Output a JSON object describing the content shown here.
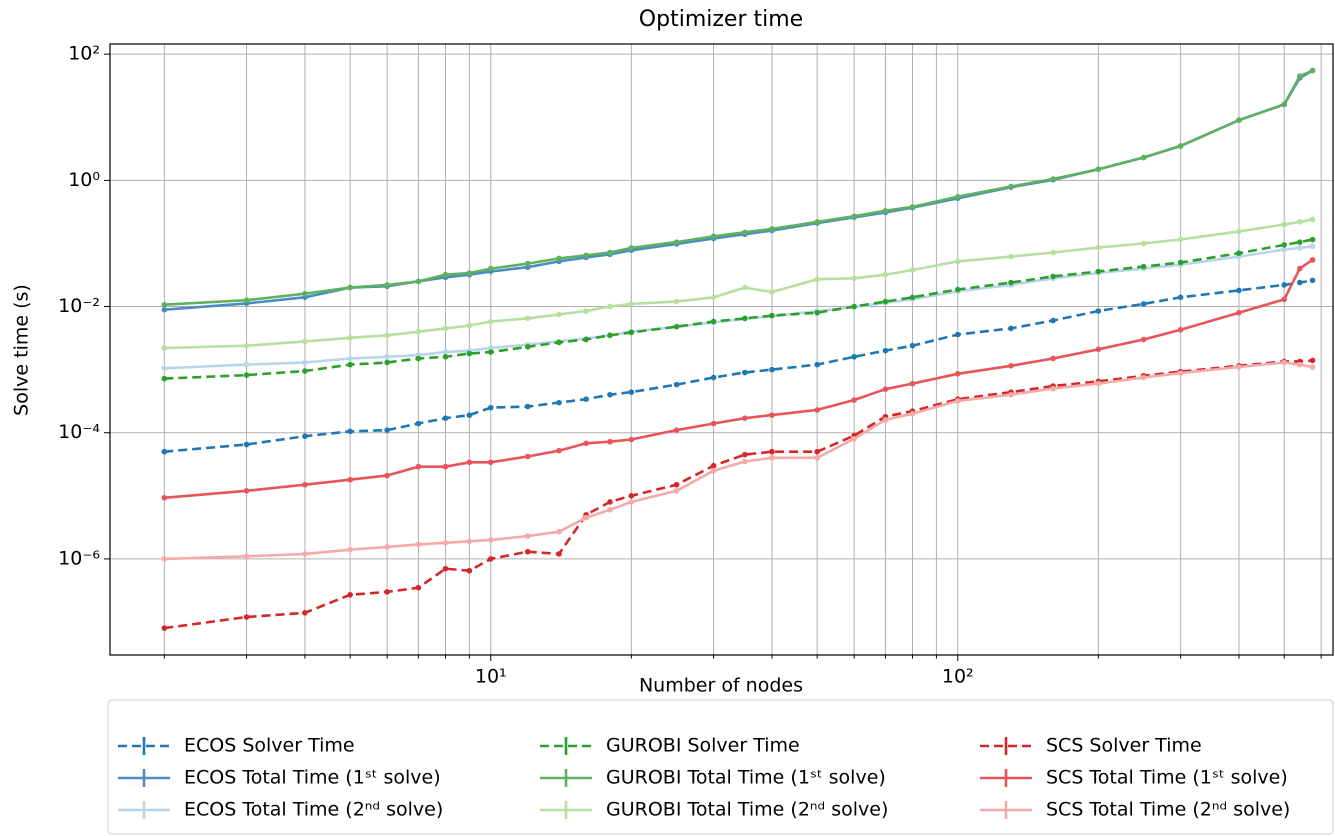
{
  "chart_data": {
    "type": "line",
    "title": "Optimizer time",
    "x_label": "Number of nodes",
    "y_label": "Solve time (s)",
    "log_x": true,
    "log_y": true,
    "grid": true,
    "xlim": [
      1.53,
      636
    ],
    "ylim": [
      3e-08,
      145
    ],
    "xticks": [
      {
        "value": 10,
        "label": "10¹"
      },
      {
        "value": 100,
        "label": "10²"
      }
    ],
    "xminorticks": [
      2,
      3,
      4,
      5,
      6,
      7,
      8,
      9,
      20,
      30,
      40,
      50,
      60,
      70,
      80,
      90,
      200,
      300,
      400,
      500,
      600
    ],
    "yticks": [
      {
        "value": 1e-06,
        "label": "10⁻⁶"
      },
      {
        "value": 0.0001,
        "label": "10⁻⁴"
      },
      {
        "value": 0.01,
        "label": "10⁻²"
      },
      {
        "value": 1,
        "label": "10⁰"
      },
      {
        "value": 100,
        "label": "10²"
      }
    ],
    "legend": "below",
    "x": [
      2,
      3,
      4,
      5,
      6,
      7,
      8,
      9,
      10,
      12,
      14,
      16,
      18,
      20,
      25,
      30,
      35,
      40,
      50,
      60,
      70,
      80,
      100,
      130,
      160,
      200,
      250,
      300,
      400,
      500,
      540,
      575
    ],
    "series": [
      {
        "name": "ECOS Solver Time",
        "color": "#1f77b4",
        "style": "dashed",
        "values": [
          5e-05,
          6.5e-05,
          8.8e-05,
          0.000105,
          0.00011,
          0.00014,
          0.00017,
          0.00019,
          0.00025,
          0.00026,
          0.0003,
          0.00034,
          0.0004,
          0.00044,
          0.00058,
          0.00075,
          0.0009,
          0.001,
          0.0012,
          0.0016,
          0.002,
          0.0024,
          0.0036,
          0.0045,
          0.006,
          0.0085,
          0.011,
          0.014,
          0.018,
          0.022,
          0.024,
          0.026
        ]
      },
      {
        "name": "ECOS Total Time (1ˢᵗ solve)",
        "color": "#4a8cc4",
        "style": "solid",
        "values": [
          0.0089,
          0.0112,
          0.014,
          0.02,
          0.021,
          0.025,
          0.029,
          0.032,
          0.036,
          0.042,
          0.052,
          0.06,
          0.067,
          0.078,
          0.098,
          0.12,
          0.14,
          0.16,
          0.21,
          0.26,
          0.31,
          0.37,
          0.52,
          0.78,
          1.02,
          1.5,
          2.3,
          3.5,
          9,
          16,
          42,
          55
        ]
      },
      {
        "name": "ECOS Total Time (2ⁿᵈ solve)",
        "color": "#b9d5ea",
        "style": "solid",
        "values": [
          0.00105,
          0.0012,
          0.0013,
          0.0015,
          0.0016,
          0.0017,
          0.0019,
          0.002,
          0.0022,
          0.0025,
          0.0028,
          0.0031,
          0.0035,
          0.004,
          0.0048,
          0.0056,
          0.0064,
          0.007,
          0.0085,
          0.0098,
          0.0115,
          0.013,
          0.0175,
          0.022,
          0.028,
          0.034,
          0.04,
          0.046,
          0.062,
          0.08,
          0.085,
          0.09
        ]
      },
      {
        "name": "GUROBI Solver Time",
        "color": "#2ca02c",
        "style": "dashed",
        "values": [
          0.00072,
          0.00082,
          0.00095,
          0.0012,
          0.0013,
          0.0015,
          0.0016,
          0.0018,
          0.0019,
          0.0023,
          0.0027,
          0.003,
          0.0035,
          0.0039,
          0.0048,
          0.0058,
          0.0065,
          0.0072,
          0.008,
          0.01,
          0.012,
          0.014,
          0.0186,
          0.024,
          0.03,
          0.036,
          0.043,
          0.05,
          0.07,
          0.095,
          0.105,
          0.115
        ]
      },
      {
        "name": "GUROBI Total Time (1ˢᵗ solve)",
        "color": "#5fb05f",
        "style": "solid",
        "values": [
          0.0107,
          0.0126,
          0.016,
          0.02,
          0.022,
          0.025,
          0.032,
          0.034,
          0.04,
          0.048,
          0.058,
          0.065,
          0.072,
          0.085,
          0.105,
          0.13,
          0.15,
          0.17,
          0.22,
          0.27,
          0.33,
          0.38,
          0.55,
          0.8,
          1.05,
          1.5,
          2.3,
          3.5,
          9,
          16,
          45,
          55
        ]
      },
      {
        "name": "GUROBI Total Time (2ⁿᵈ solve)",
        "color": "#b6e0a0",
        "style": "solid",
        "values": [
          0.0022,
          0.0024,
          0.0028,
          0.0032,
          0.0035,
          0.004,
          0.0045,
          0.005,
          0.0058,
          0.0065,
          0.0075,
          0.0085,
          0.01,
          0.011,
          0.012,
          0.014,
          0.02,
          0.017,
          0.027,
          0.028,
          0.032,
          0.038,
          0.052,
          0.062,
          0.072,
          0.086,
          0.1,
          0.116,
          0.155,
          0.2,
          0.22,
          0.24
        ]
      },
      {
        "name": "SCS Solver Time",
        "color": "#d62728",
        "style": "dashed",
        "values": [
          8e-08,
          1.2e-07,
          1.4e-07,
          2.7e-07,
          3e-07,
          3.5e-07,
          7e-07,
          6.5e-07,
          1e-06,
          1.3e-06,
          1.2e-06,
          5e-06,
          8e-06,
          1e-05,
          1.5e-05,
          3e-05,
          4.5e-05,
          5e-05,
          5e-05,
          9e-05,
          0.00018,
          0.00022,
          0.00034,
          0.00044,
          0.00055,
          0.00065,
          0.0008,
          0.00093,
          0.00115,
          0.00135,
          0.00135,
          0.0014
        ]
      },
      {
        "name": "SCS Total Time (1ˢᵗ solve)",
        "color": "#e8545a",
        "style": "solid",
        "values": [
          9.3e-06,
          1.2e-05,
          1.5e-05,
          1.8e-05,
          2.1e-05,
          2.9e-05,
          2.9e-05,
          3.4e-05,
          3.4e-05,
          4.2e-05,
          5.2e-05,
          6.8e-05,
          7.2e-05,
          7.8e-05,
          0.00011,
          0.00014,
          0.00017,
          0.00019,
          0.00023,
          0.00033,
          0.00049,
          0.0006,
          0.00086,
          0.00115,
          0.0015,
          0.0021,
          0.003,
          0.0043,
          0.008,
          0.013,
          0.04,
          0.055
        ]
      },
      {
        "name": "SCS Total Time (2ⁿᵈ solve)",
        "color": "#f5aaaa",
        "style": "solid",
        "values": [
          1e-06,
          1.1e-06,
          1.2e-06,
          1.4e-06,
          1.55e-06,
          1.7e-06,
          1.8e-06,
          1.9e-06,
          2e-06,
          2.3e-06,
          2.7e-06,
          4.5e-06,
          6e-06,
          8e-06,
          1.2e-05,
          2.5e-05,
          3.5e-05,
          4e-05,
          4e-05,
          8e-05,
          0.00016,
          0.0002,
          0.00032,
          0.0004,
          0.0005,
          0.0006,
          0.00075,
          0.00088,
          0.0011,
          0.0013,
          0.0012,
          0.0011
        ]
      }
    ]
  }
}
